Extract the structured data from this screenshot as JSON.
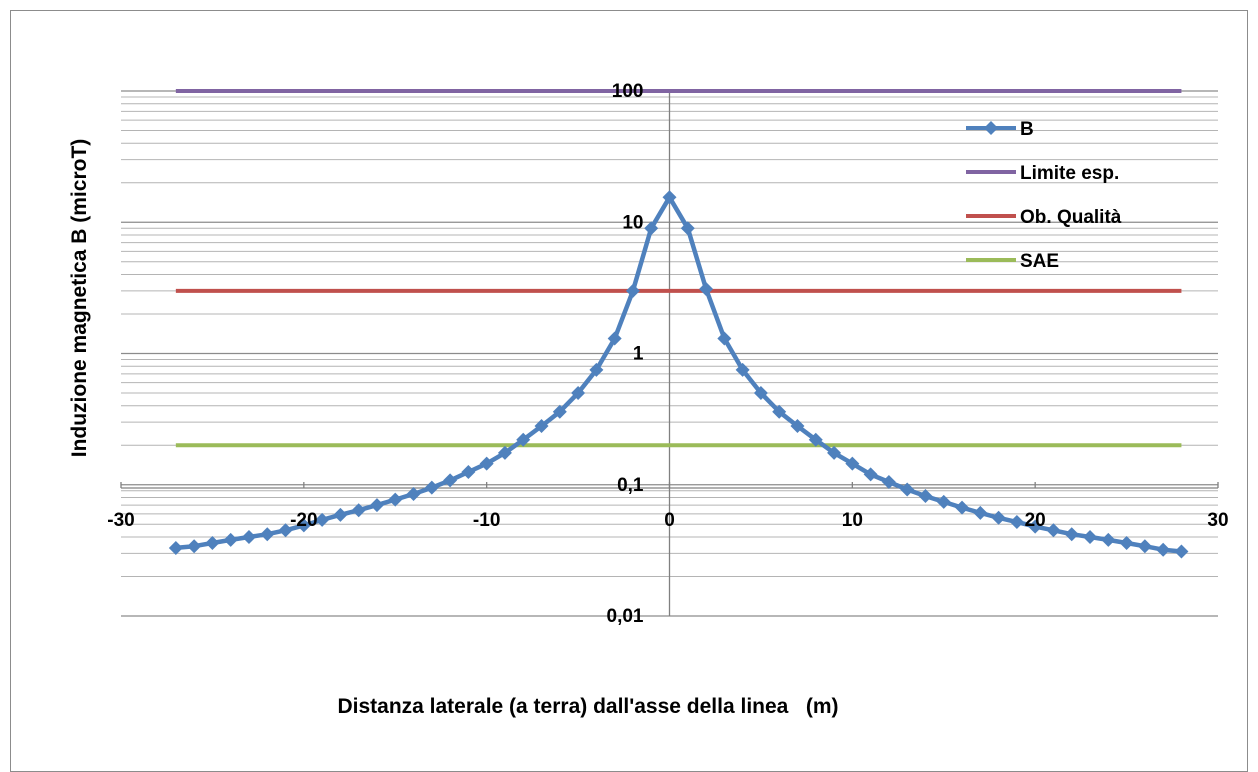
{
  "chart_data": {
    "type": "line",
    "title": "",
    "xlabel": "Distanza laterale (a terra) dall'asse della linea   (m)",
    "ylabel": "Induzione magnetica B (microT)",
    "xlim": [
      -30,
      30
    ],
    "ylim": [
      0.01,
      100
    ],
    "yscale": "log",
    "x_ticks": [
      -30,
      -20,
      -10,
      0,
      10,
      20,
      30
    ],
    "x_tick_labels": [
      "-30",
      "-20",
      "-10",
      "0",
      "10",
      "20",
      "30"
    ],
    "y_ticks": [
      0.01,
      0.1,
      1,
      10,
      100
    ],
    "y_tick_labels": [
      "0,01",
      "0,1",
      "1",
      "10",
      "100"
    ],
    "grid": "horizontal major and minor",
    "legend_position": "top-right inside",
    "series": [
      {
        "name": "B",
        "color": "#4F81BD",
        "marker": "diamond",
        "x": [
          -27,
          -26,
          -25,
          -24,
          -23,
          -22,
          -21,
          -20,
          -19,
          -18,
          -17,
          -16,
          -15,
          -14,
          -13,
          -12,
          -11,
          -10,
          -9,
          -8,
          -7,
          -6,
          -5,
          -4,
          -3,
          -2,
          -1,
          0,
          1,
          2,
          3,
          4,
          5,
          6,
          7,
          8,
          9,
          10,
          11,
          12,
          13,
          14,
          15,
          16,
          17,
          18,
          19,
          20,
          21,
          22,
          23,
          24,
          25,
          26,
          27,
          28
        ],
        "values": [
          0.033,
          0.034,
          0.036,
          0.038,
          0.04,
          0.042,
          0.045,
          0.049,
          0.054,
          0.059,
          0.064,
          0.07,
          0.077,
          0.085,
          0.095,
          0.108,
          0.125,
          0.145,
          0.175,
          0.22,
          0.28,
          0.36,
          0.5,
          0.75,
          1.3,
          3.0,
          9.0,
          15.5,
          9.0,
          3.1,
          1.3,
          0.75,
          0.5,
          0.36,
          0.28,
          0.22,
          0.175,
          0.145,
          0.12,
          0.105,
          0.092,
          0.082,
          0.074,
          0.067,
          0.061,
          0.056,
          0.052,
          0.048,
          0.045,
          0.042,
          0.04,
          0.038,
          0.036,
          0.034,
          0.032,
          0.031
        ]
      },
      {
        "name": "Limite esp.",
        "color": "#8064A2",
        "x": [
          -27,
          28
        ],
        "values": [
          100,
          100
        ]
      },
      {
        "name": "Ob. Qualità",
        "color": "#C0504D",
        "x": [
          -27,
          28
        ],
        "values": [
          3,
          3
        ]
      },
      {
        "name": "SAE",
        "color": "#9BBB59",
        "x": [
          -27,
          28
        ],
        "values": [
          0.2,
          0.2
        ]
      }
    ]
  }
}
